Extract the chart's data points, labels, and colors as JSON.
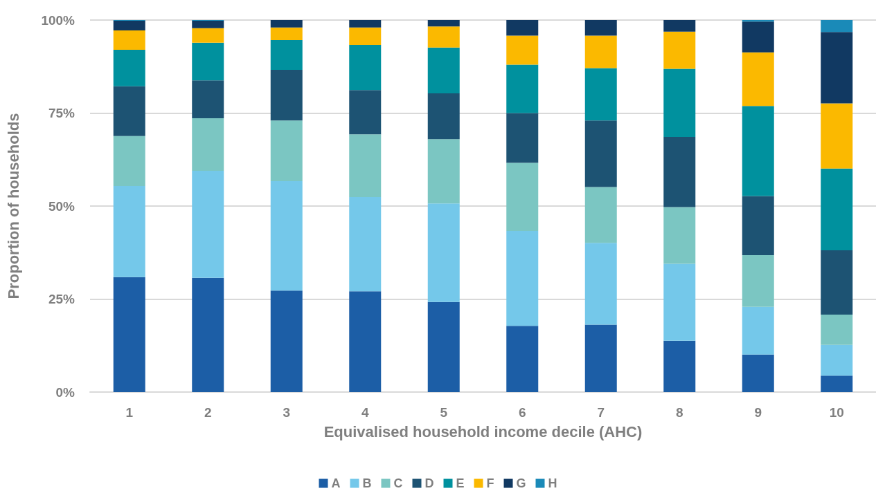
{
  "chart_data": {
    "type": "bar",
    "stacked": true,
    "xlabel": "Equivalised household income decile (AHC)",
    "ylabel": "Proportion of households",
    "categories": [
      "1",
      "2",
      "3",
      "4",
      "5",
      "6",
      "7",
      "8",
      "9",
      "10"
    ],
    "series": [
      {
        "name": "A",
        "color": "#1c5ea6",
        "values": [
          30.9,
          30.7,
          27.3,
          27.1,
          24.2,
          17.8,
          18.1,
          13.8,
          10.1,
          4.4
        ]
      },
      {
        "name": "B",
        "color": "#74c8ea",
        "values": [
          24.5,
          28.8,
          29.4,
          25.3,
          26.5,
          25.5,
          22.0,
          20.7,
          12.8,
          8.3
        ]
      },
      {
        "name": "C",
        "color": "#7bc6c2",
        "values": [
          13.4,
          14.1,
          16.3,
          16.9,
          17.3,
          18.3,
          15.0,
          15.2,
          13.9,
          8.1
        ]
      },
      {
        "name": "D",
        "color": "#1d5373",
        "values": [
          13.4,
          10.2,
          13.6,
          11.9,
          12.3,
          13.4,
          17.9,
          18.9,
          15.9,
          17.3
        ]
      },
      {
        "name": "E",
        "color": "#00919e",
        "values": [
          9.8,
          10.1,
          8.0,
          12.1,
          12.3,
          13.0,
          14.1,
          18.3,
          24.2,
          22.0
        ]
      },
      {
        "name": "F",
        "color": "#fbb900",
        "values": [
          5.2,
          3.9,
          3.4,
          4.7,
          5.7,
          7.8,
          8.7,
          10.0,
          14.4,
          17.5
        ]
      },
      {
        "name": "G",
        "color": "#113962",
        "values": [
          2.6,
          2.0,
          2.0,
          2.0,
          1.7,
          4.2,
          4.2,
          3.1,
          8.3,
          19.2
        ]
      },
      {
        "name": "H",
        "color": "#1a8ab8",
        "values": [
          0.2,
          0.2,
          0,
          0,
          0,
          0,
          0,
          0,
          0.4,
          3.2
        ]
      }
    ],
    "ylim": [
      0,
      100
    ],
    "yticks": [
      {
        "value": 0,
        "label": "0%"
      },
      {
        "value": 25,
        "label": "25%"
      },
      {
        "value": 50,
        "label": "50%"
      },
      {
        "value": 75,
        "label": "75%"
      },
      {
        "value": 100,
        "label": "100%"
      }
    ],
    "grid": "y",
    "legend": "bottom"
  }
}
